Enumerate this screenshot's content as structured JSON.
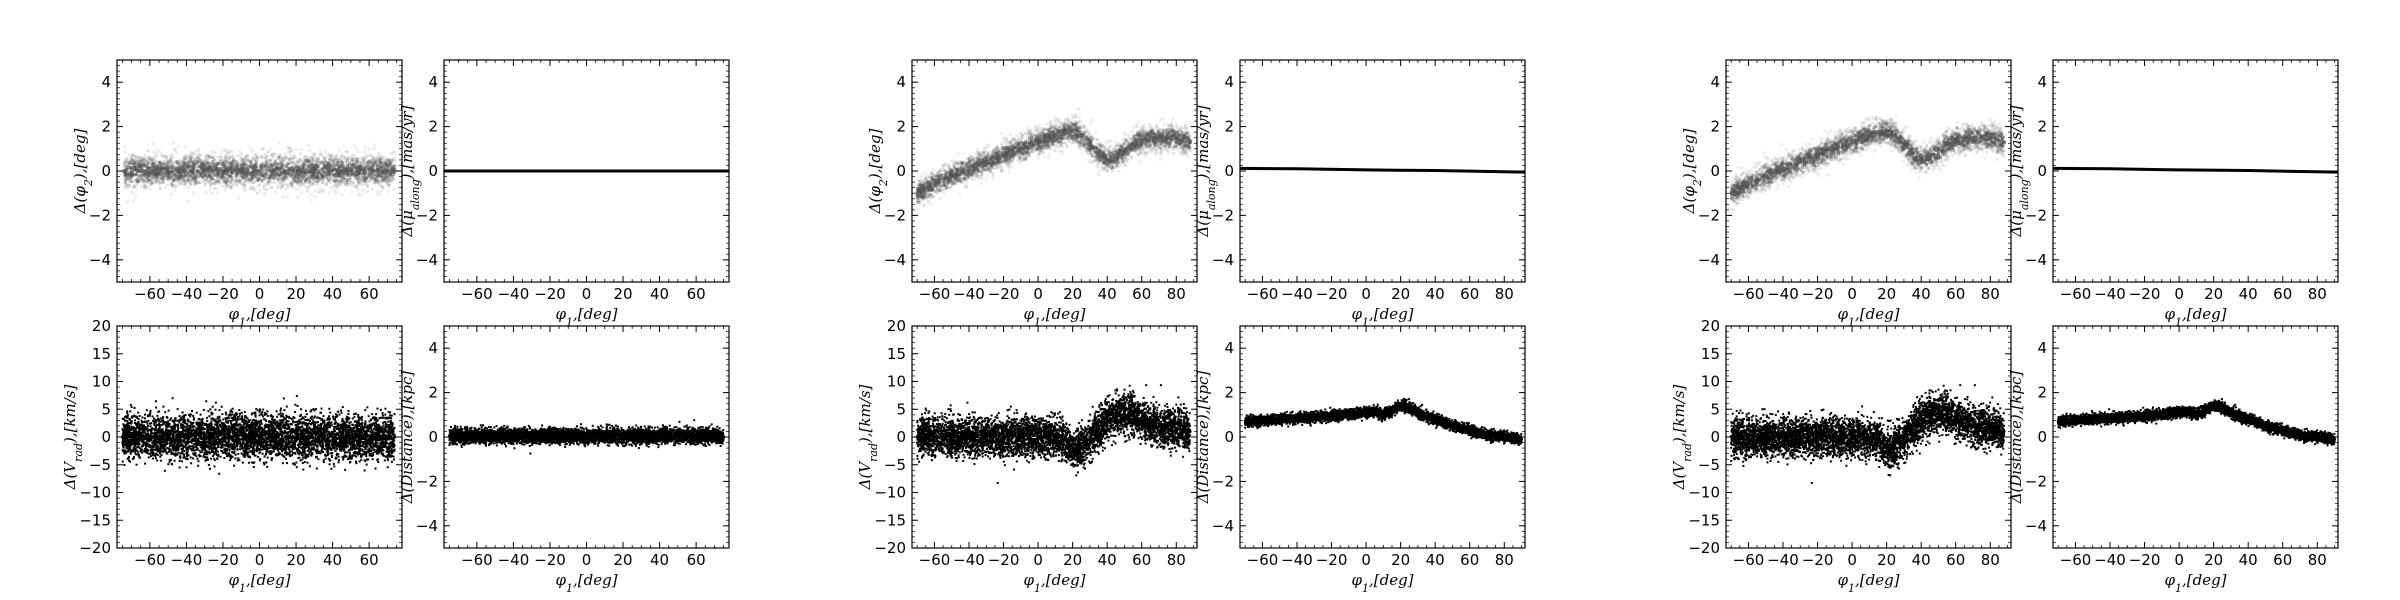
{
  "figure": {
    "description_groups": 3,
    "panels_per_group": 4
  },
  "chart_data": [
    {
      "type": "scatter",
      "render": "density",
      "xlabel": "φ1,[deg]",
      "ylabel": "Δ(φ2),[deg]",
      "xlim": [
        -78,
        78
      ],
      "ylim": [
        -5,
        5
      ],
      "xticks": [
        -60,
        -40,
        -20,
        0,
        20,
        40,
        60
      ],
      "yticks": [
        -4,
        -2,
        0,
        2,
        4
      ],
      "points_x": [
        -74,
        -66,
        -58,
        -50,
        -42,
        -34,
        -26,
        -18,
        -10,
        -2,
        6,
        14,
        22,
        30,
        38,
        46,
        54,
        62,
        70,
        74
      ],
      "points_y": [
        0,
        0,
        0,
        0,
        0,
        0,
        0,
        0,
        0,
        0,
        0,
        0,
        0,
        0,
        0,
        0,
        0,
        0,
        0,
        0
      ],
      "spread": 0.45,
      "color": "#555555"
    },
    {
      "type": "line",
      "xlabel": "φ1,[deg]",
      "ylabel": "Δ(μalong),[mas/yr]",
      "xlim": [
        -78,
        78
      ],
      "ylim": [
        -5,
        5
      ],
      "xticks": [
        -60,
        -40,
        -20,
        0,
        20,
        40,
        60
      ],
      "yticks": [
        -4,
        -2,
        0,
        2,
        4
      ],
      "x": [
        -78,
        78
      ],
      "y": [
        0,
        0
      ],
      "color": "#000000"
    },
    {
      "type": "scatter",
      "render": "points",
      "xlabel": "φ1,[deg]",
      "ylabel": "Δ(Vrad),[km/s]",
      "xlim": [
        -78,
        78
      ],
      "ylim": [
        -20,
        20
      ],
      "xticks": [
        -60,
        -40,
        -20,
        0,
        20,
        40,
        60
      ],
      "yticks": [
        -20,
        -15,
        -10,
        -5,
        0,
        5,
        10,
        15,
        20
      ],
      "points_x": [
        -75,
        -65,
        -55,
        -45,
        -35,
        -25,
        -15,
        -5,
        5,
        15,
        25,
        35,
        45,
        55,
        65,
        74
      ],
      "points_y": [
        0,
        0,
        0,
        0,
        0,
        0,
        0,
        0,
        0,
        0,
        0,
        0,
        0,
        0,
        0,
        0
      ],
      "spread": 2.6,
      "color": "#000000"
    },
    {
      "type": "scatter",
      "render": "points",
      "xlabel": "φ1,[deg]",
      "ylabel": "Δ(Distance),[kpc]",
      "xlim": [
        -78,
        78
      ],
      "ylim": [
        -5,
        5
      ],
      "xticks": [
        -60,
        -40,
        -20,
        0,
        20,
        40,
        60
      ],
      "yticks": [
        -4,
        -2,
        0,
        2,
        4
      ],
      "points_x": [
        -75,
        -60,
        -45,
        -30,
        -15,
        0,
        15,
        30,
        45,
        60,
        75
      ],
      "points_y": [
        0.05,
        0.05,
        0.05,
        0.05,
        0.05,
        0.05,
        0.05,
        0.05,
        0.05,
        0.05,
        0.0
      ],
      "spread": 0.22,
      "color": "#000000"
    },
    {
      "type": "scatter",
      "render": "density",
      "xlabel": "φ1,[deg]",
      "ylabel": "Δ(φ2),[deg]",
      "xlim": [
        -73,
        92
      ],
      "ylim": [
        -5,
        5
      ],
      "xticks": [
        -60,
        -40,
        -20,
        0,
        20,
        40,
        60,
        80
      ],
      "yticks": [
        -4,
        -2,
        0,
        2,
        4
      ],
      "points_x": [
        -70,
        -60,
        -50,
        -40,
        -30,
        -20,
        -10,
        0,
        10,
        20,
        25,
        30,
        35,
        40,
        45,
        50,
        55,
        60,
        70,
        80,
        88
      ],
      "points_y": [
        -1.0,
        -0.6,
        -0.2,
        0.1,
        0.4,
        0.7,
        1.0,
        1.3,
        1.6,
        1.8,
        1.6,
        1.2,
        0.8,
        0.5,
        0.6,
        0.9,
        1.2,
        1.4,
        1.5,
        1.5,
        1.3
      ],
      "spread": 0.35,
      "color": "#555555"
    },
    {
      "type": "line",
      "xlabel": "φ1,[deg]",
      "ylabel": "Δ(μalong),[mas/yr]",
      "xlim": [
        -73,
        92
      ],
      "ylim": [
        -5,
        5
      ],
      "xticks": [
        -60,
        -40,
        -20,
        0,
        20,
        40,
        60,
        80
      ],
      "yticks": [
        -4,
        -2,
        0,
        2,
        4
      ],
      "x": [
        -73,
        -40,
        0,
        40,
        92
      ],
      "y": [
        0.12,
        0.1,
        0.05,
        0.02,
        -0.05
      ],
      "color": "#000000"
    },
    {
      "type": "scatter",
      "render": "points",
      "xlabel": "φ1,[deg]",
      "ylabel": "Δ(Vrad),[km/s]",
      "xlim": [
        -73,
        92
      ],
      "ylim": [
        -20,
        20
      ],
      "xticks": [
        -60,
        -40,
        -20,
        0,
        20,
        40,
        60,
        80
      ],
      "yticks": [
        -20,
        -15,
        -10,
        -5,
        0,
        5,
        10,
        15,
        20
      ],
      "points_x": [
        -70,
        -60,
        -50,
        -40,
        -30,
        -20,
        -10,
        0,
        10,
        15,
        20,
        25,
        30,
        35,
        40,
        45,
        50,
        55,
        60,
        70,
        80,
        88
      ],
      "points_y": [
        0,
        0,
        0,
        0,
        0,
        0,
        0,
        0,
        0,
        -0.5,
        -2.5,
        -2,
        0,
        1.5,
        3,
        4,
        4.5,
        4,
        3,
        2,
        1.5,
        1
      ],
      "spread": 2.3,
      "color": "#000000"
    },
    {
      "type": "scatter",
      "render": "points",
      "xlabel": "φ1,[deg]",
      "ylabel": "Δ(Distance),[kpc]",
      "xlim": [
        -73,
        92
      ],
      "ylim": [
        -5,
        5
      ],
      "xticks": [
        -60,
        -40,
        -20,
        0,
        20,
        40,
        60,
        80
      ],
      "yticks": [
        -4,
        -2,
        0,
        2,
        4
      ],
      "points_x": [
        -70,
        -60,
        -50,
        -40,
        -30,
        -20,
        -10,
        0,
        5,
        10,
        15,
        20,
        25,
        30,
        40,
        50,
        60,
        70,
        80,
        90
      ],
      "points_y": [
        0.7,
        0.75,
        0.8,
        0.85,
        0.9,
        0.95,
        1.0,
        1.1,
        1.15,
        1.0,
        1.2,
        1.4,
        1.3,
        1.1,
        0.8,
        0.5,
        0.3,
        0.1,
        0.0,
        -0.1
      ],
      "spread": 0.15,
      "color": "#000000"
    },
    {
      "type": "scatter",
      "render": "density",
      "xlabel": "φ1,[deg]",
      "ylabel": "Δ(φ2),[deg]",
      "xlim": [
        -73,
        92
      ],
      "ylim": [
        -5,
        5
      ],
      "xticks": [
        -60,
        -40,
        -20,
        0,
        20,
        40,
        60,
        80
      ],
      "yticks": [
        -4,
        -2,
        0,
        2,
        4
      ],
      "points_x": [
        -70,
        -60,
        -50,
        -40,
        -30,
        -20,
        -10,
        0,
        10,
        20,
        25,
        30,
        35,
        40,
        45,
        50,
        55,
        60,
        70,
        80,
        88
      ],
      "points_y": [
        -1.0,
        -0.6,
        -0.2,
        0.1,
        0.4,
        0.7,
        1.0,
        1.3,
        1.6,
        1.8,
        1.6,
        1.2,
        0.8,
        0.5,
        0.6,
        0.9,
        1.2,
        1.4,
        1.5,
        1.5,
        1.3
      ],
      "spread": 0.35,
      "color": "#555555"
    },
    {
      "type": "line",
      "xlabel": "φ1,[deg]",
      "ylabel": "Δ(μalong),[mas/yr]",
      "xlim": [
        -73,
        92
      ],
      "ylim": [
        -5,
        5
      ],
      "xticks": [
        -60,
        -40,
        -20,
        0,
        20,
        40,
        60,
        80
      ],
      "yticks": [
        -4,
        -2,
        0,
        2,
        4
      ],
      "x": [
        -73,
        -40,
        0,
        40,
        92
      ],
      "y": [
        0.12,
        0.1,
        0.05,
        0.02,
        -0.05
      ],
      "color": "#000000"
    },
    {
      "type": "scatter",
      "render": "points",
      "xlabel": "φ1,[deg]",
      "ylabel": "Δ(Vrad),[km/s]",
      "xlim": [
        -73,
        92
      ],
      "ylim": [
        -20,
        20
      ],
      "xticks": [
        -60,
        -40,
        -20,
        0,
        20,
        40,
        60,
        80
      ],
      "yticks": [
        -20,
        -15,
        -10,
        -5,
        0,
        5,
        10,
        15,
        20
      ],
      "points_x": [
        -70,
        -60,
        -50,
        -40,
        -30,
        -20,
        -10,
        0,
        10,
        15,
        20,
        25,
        30,
        35,
        40,
        45,
        50,
        55,
        60,
        70,
        80,
        88
      ],
      "points_y": [
        0,
        0,
        0,
        0,
        0,
        0,
        0,
        0,
        0,
        -0.5,
        -2.5,
        -2,
        0,
        1.5,
        3,
        4,
        4.5,
        4,
        3,
        2,
        1.5,
        1
      ],
      "spread": 2.3,
      "color": "#000000"
    },
    {
      "type": "scatter",
      "render": "points",
      "xlabel": "φ1,[deg]",
      "ylabel": "Δ(Distance),[kpc]",
      "xlim": [
        -73,
        92
      ],
      "ylim": [
        -5,
        5
      ],
      "xticks": [
        -60,
        -40,
        -20,
        0,
        20,
        40,
        60,
        80
      ],
      "yticks": [
        -4,
        -2,
        0,
        2,
        4
      ],
      "points_x": [
        -70,
        -60,
        -50,
        -40,
        -30,
        -20,
        -10,
        0,
        5,
        10,
        15,
        20,
        25,
        30,
        40,
        50,
        60,
        70,
        80,
        90
      ],
      "points_y": [
        0.7,
        0.75,
        0.8,
        0.85,
        0.9,
        0.95,
        1.0,
        1.1,
        1.15,
        1.0,
        1.2,
        1.4,
        1.3,
        1.1,
        0.8,
        0.5,
        0.3,
        0.1,
        0.0,
        -0.1
      ],
      "spread": 0.15,
      "color": "#000000"
    }
  ]
}
